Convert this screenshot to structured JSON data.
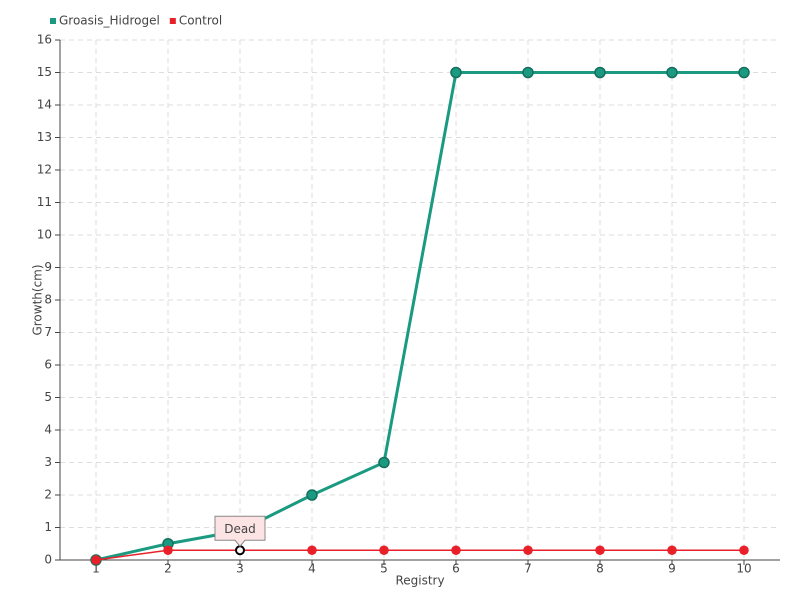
{
  "chart_data": {
    "type": "line",
    "x": [
      1,
      2,
      3,
      4,
      5,
      6,
      7,
      8,
      9,
      10
    ],
    "xlim": [
      0.5,
      10.5
    ],
    "xticks": [
      1,
      2,
      3,
      4,
      5,
      6,
      7,
      8,
      9,
      10
    ],
    "ylim": [
      0,
      16
    ],
    "yticks": [
      0,
      1,
      2,
      3,
      4,
      5,
      6,
      7,
      8,
      9,
      10,
      11,
      12,
      13,
      14,
      15,
      16
    ],
    "xlabel": "Registry",
    "ylabel": "Growth(cm)",
    "grid": true,
    "legend": "top-left",
    "series": [
      {
        "name": "Groasis_Hidrogel",
        "color": "#1a9a80",
        "values": [
          0,
          0.5,
          0.9,
          2,
          3,
          15,
          15,
          15,
          15,
          15
        ]
      },
      {
        "name": "Control",
        "color": "#e8202a",
        "values": [
          0,
          0.3,
          0.3,
          0.3,
          0.3,
          0.3,
          0.3,
          0.3,
          0.3,
          0.3
        ],
        "annotation": {
          "text": "Dead",
          "x": 3
        }
      }
    ]
  }
}
